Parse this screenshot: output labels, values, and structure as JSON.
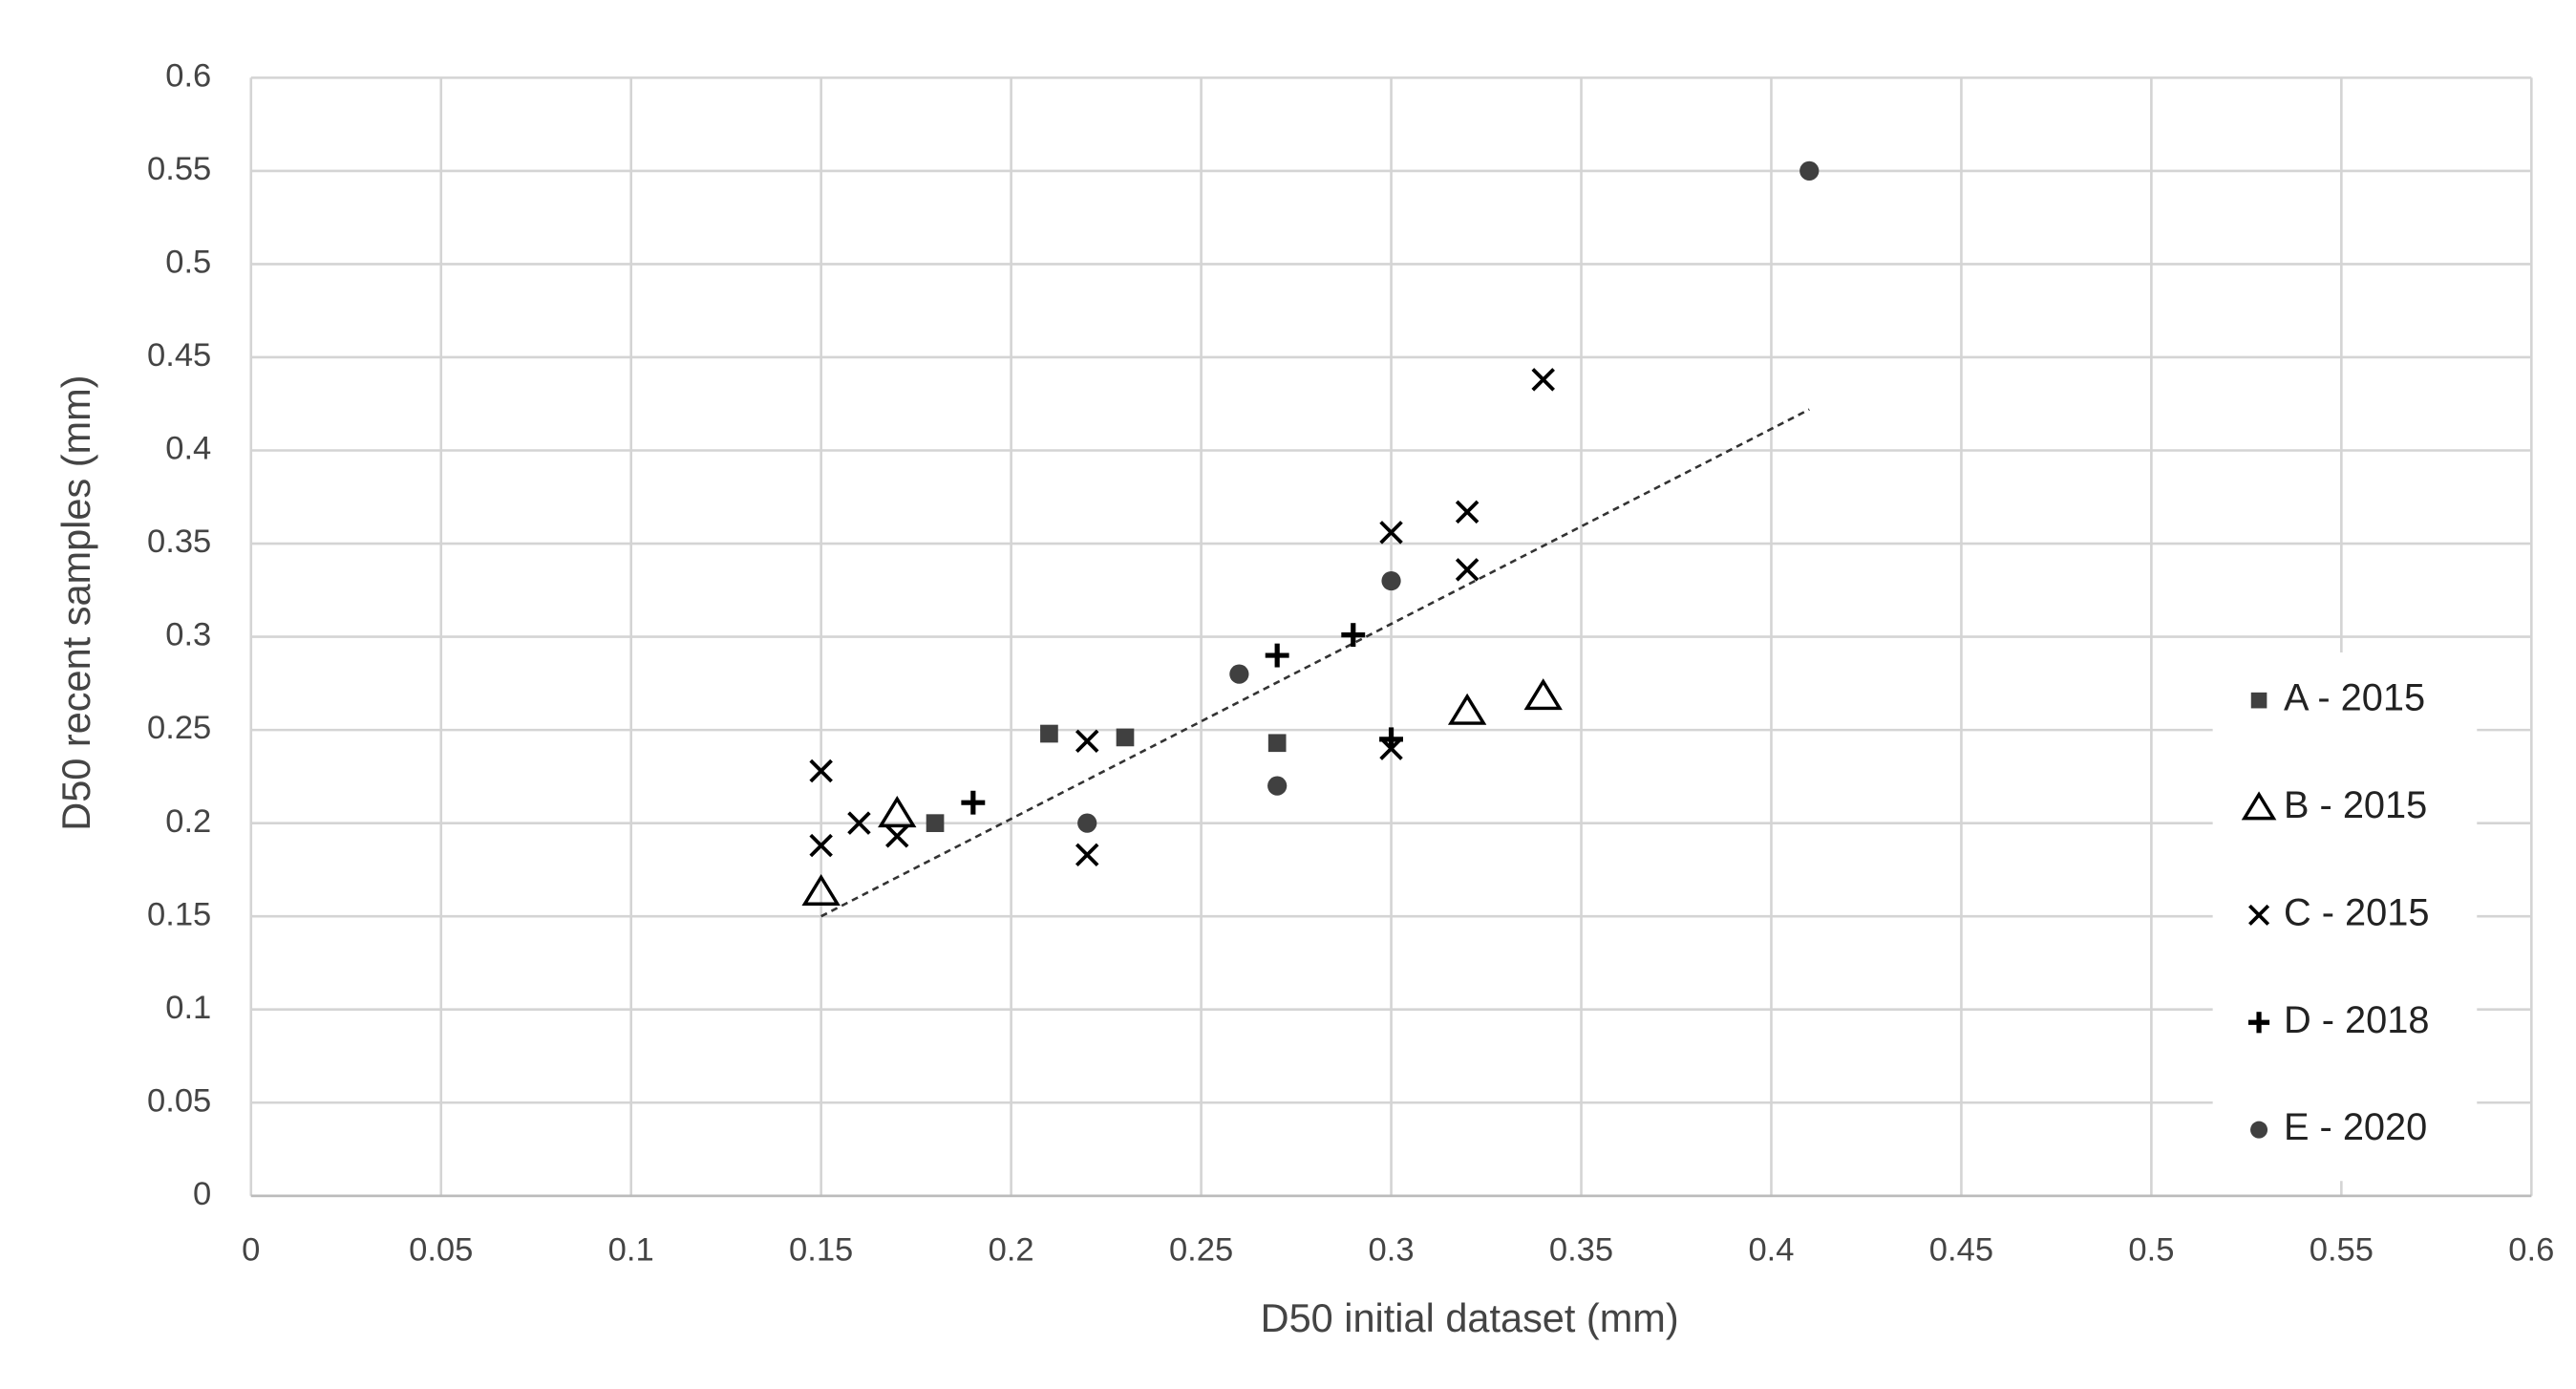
{
  "chart_data": {
    "type": "scatter",
    "x_label": "D50 initial dataset (mm)",
    "y_label": "D50 recent samples (mm)",
    "xlim": [
      0,
      0.6
    ],
    "ylim": [
      0,
      0.6
    ],
    "xticks": [
      0,
      0.05,
      0.1,
      0.15,
      0.2,
      0.25,
      0.3,
      0.35,
      0.4,
      0.45,
      0.5,
      0.55,
      0.6
    ],
    "yticks": [
      0,
      0.05,
      0.1,
      0.15,
      0.2,
      0.25,
      0.3,
      0.35,
      0.4,
      0.45,
      0.5,
      0.55,
      0.6
    ],
    "grid": true,
    "legend": "right",
    "series": [
      {
        "name": "A - 2015",
        "marker": "square",
        "color": "#404040",
        "x": [
          0.18,
          0.21,
          0.23,
          0.27
        ],
        "y": [
          0.2,
          0.248,
          0.246,
          0.243
        ]
      },
      {
        "name": "B - 2015",
        "marker": "triangle",
        "color": "#000000",
        "x": [
          0.15,
          0.17,
          0.32,
          0.34
        ],
        "y": [
          0.163,
          0.205,
          0.26,
          0.268
        ]
      },
      {
        "name": "C - 2015",
        "marker": "x",
        "color": "#000000",
        "x": [
          0.15,
          0.15,
          0.16,
          0.17,
          0.22,
          0.22,
          0.3,
          0.3,
          0.32,
          0.32,
          0.34
        ],
        "y": [
          0.228,
          0.188,
          0.2,
          0.193,
          0.244,
          0.183,
          0.356,
          0.24,
          0.367,
          0.336,
          0.438
        ]
      },
      {
        "name": "D - 2018",
        "marker": "plus",
        "color": "#000000",
        "x": [
          0.19,
          0.27,
          0.29,
          0.3
        ],
        "y": [
          0.211,
          0.29,
          0.301,
          0.245
        ]
      },
      {
        "name": "E - 2020",
        "marker": "circle",
        "color": "#404040",
        "x": [
          0.22,
          0.26,
          0.27,
          0.3,
          0.41
        ],
        "y": [
          0.2,
          0.28,
          0.22,
          0.33,
          0.55
        ]
      }
    ],
    "trendline": {
      "x": [
        0.15,
        0.41
      ],
      "y": [
        0.15,
        0.422
      ],
      "color": "#333333"
    }
  }
}
